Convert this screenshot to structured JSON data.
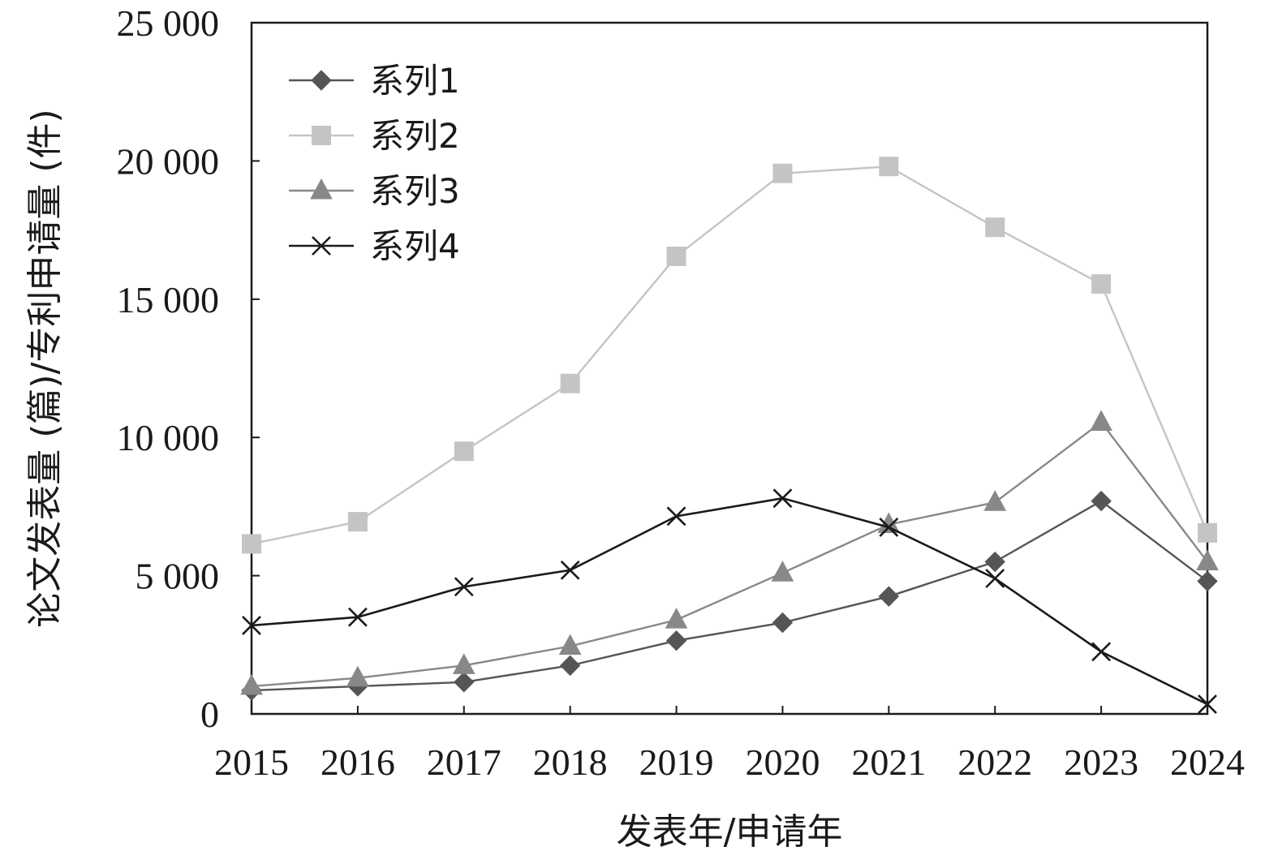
{
  "chart_data": {
    "type": "line",
    "title": "",
    "xlabel": "发表年/申请年",
    "ylabel": "论文发表量 (篇)/专利申请量 (件)",
    "categories": [
      "2015",
      "2016",
      "2017",
      "2018",
      "2019",
      "2020",
      "2021",
      "2022",
      "2023",
      "2024"
    ],
    "ylim": [
      0,
      25000
    ],
    "yticks": [
      0,
      5000,
      10000,
      15000,
      20000,
      25000
    ],
    "ytick_labels": [
      "0",
      "5 000",
      "10 000",
      "15 000",
      "20 000",
      "25 000"
    ],
    "grid": false,
    "legend_position": "top-left",
    "series": [
      {
        "name": "系列1",
        "marker": "diamond",
        "color": "#555555",
        "values": [
          850,
          1000,
          1150,
          1750,
          2650,
          3300,
          4250,
          5500,
          7700,
          4800
        ]
      },
      {
        "name": "系列2",
        "marker": "square",
        "color": "#c4c4c4",
        "values": [
          6150,
          6950,
          9500,
          11950,
          16550,
          19550,
          19800,
          17600,
          15550,
          6550
        ]
      },
      {
        "name": "系列3",
        "marker": "triangle",
        "color": "#888888",
        "values": [
          1000,
          1300,
          1750,
          2450,
          3400,
          5100,
          6850,
          7650,
          10550,
          5500
        ]
      },
      {
        "name": "系列4",
        "marker": "x",
        "color": "#1a1a1a",
        "values": [
          3200,
          3500,
          4600,
          5200,
          7150,
          7800,
          6750,
          4900,
          2250,
          350
        ]
      }
    ]
  }
}
